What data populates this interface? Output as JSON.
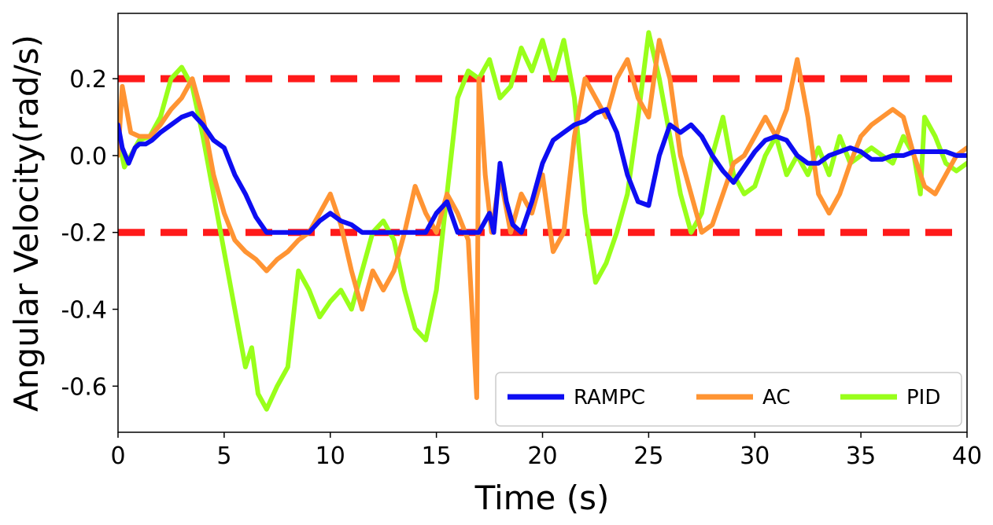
{
  "chart_data": {
    "type": "line",
    "title": "",
    "xlabel": "Time (s)",
    "ylabel": "Angular Velocity(rad/s)",
    "xlim": [
      0,
      40
    ],
    "ylim": [
      -0.72,
      0.37
    ],
    "xticks": [
      0,
      5,
      10,
      15,
      20,
      25,
      30,
      35,
      40
    ],
    "yticks": [
      0.2,
      0.0,
      -0.2,
      -0.4,
      -0.6
    ],
    "ytick_labels": [
      "0.2",
      "0.0",
      "-0.2",
      "-0.4",
      "-0.6"
    ],
    "grid": false,
    "legend_position": "lower-right",
    "reference_lines": [
      {
        "y": 0.2,
        "color": "#ff1a1a",
        "style": "dashed"
      },
      {
        "y": -0.2,
        "color": "#ff1a1a",
        "style": "dashed"
      }
    ],
    "series": [
      {
        "name": "PID",
        "color": "#99ff1a",
        "x": [
          0,
          0.3,
          0.6,
          1.0,
          1.5,
          2.0,
          2.5,
          3.0,
          3.5,
          4.0,
          4.5,
          5.0,
          5.5,
          6.0,
          6.3,
          6.6,
          7.0,
          7.5,
          8.0,
          8.5,
          9.0,
          9.5,
          10.0,
          10.5,
          11.0,
          11.5,
          12.0,
          12.5,
          13.0,
          13.5,
          14.0,
          14.5,
          15.0,
          15.5,
          16.0,
          16.5,
          17.0,
          17.5,
          18.0,
          18.5,
          19.0,
          19.5,
          20.0,
          20.5,
          21.0,
          21.5,
          22.0,
          22.5,
          23.0,
          23.5,
          24.0,
          24.5,
          25.0,
          25.5,
          26.0,
          26.5,
          27.0,
          27.5,
          28.0,
          28.5,
          29.0,
          29.5,
          30.0,
          30.5,
          31.0,
          31.5,
          32.0,
          32.5,
          33.0,
          33.5,
          34.0,
          34.5,
          35.0,
          35.5,
          36.0,
          36.5,
          37.0,
          37.5,
          37.8,
          38.0,
          38.5,
          39.0,
          39.5,
          40.0
        ],
        "y": [
          0.05,
          -0.03,
          0.0,
          0.04,
          0.05,
          0.1,
          0.2,
          0.23,
          0.18,
          0.05,
          -0.1,
          -0.25,
          -0.4,
          -0.55,
          -0.5,
          -0.62,
          -0.66,
          -0.6,
          -0.55,
          -0.3,
          -0.35,
          -0.42,
          -0.38,
          -0.35,
          -0.4,
          -0.3,
          -0.2,
          -0.17,
          -0.22,
          -0.35,
          -0.45,
          -0.48,
          -0.35,
          -0.1,
          0.15,
          0.22,
          0.2,
          0.25,
          0.15,
          0.18,
          0.28,
          0.22,
          0.3,
          0.2,
          0.3,
          0.15,
          -0.15,
          -0.33,
          -0.28,
          -0.2,
          -0.1,
          0.1,
          0.32,
          0.2,
          0.05,
          -0.1,
          -0.2,
          -0.15,
          0.0,
          0.1,
          -0.05,
          -0.1,
          -0.08,
          0.0,
          0.05,
          -0.05,
          0.0,
          -0.05,
          0.02,
          -0.05,
          0.05,
          -0.02,
          0.0,
          0.02,
          0.0,
          -0.02,
          0.05,
          0.0,
          -0.1,
          0.1,
          0.05,
          -0.02,
          -0.04,
          -0.02
        ]
      },
      {
        "name": "AC",
        "color": "#ff9433",
        "x": [
          0,
          0.2,
          0.6,
          1.0,
          1.5,
          2.0,
          2.5,
          3.0,
          3.5,
          4.0,
          4.5,
          5.0,
          5.5,
          6.0,
          6.5,
          7.0,
          7.5,
          8.0,
          8.5,
          9.0,
          9.5,
          10.0,
          10.5,
          11.0,
          11.5,
          12.0,
          12.5,
          13.0,
          13.5,
          14.0,
          14.5,
          15.0,
          15.5,
          16.0,
          16.5,
          16.9,
          17.0,
          17.3,
          17.6,
          18.0,
          18.5,
          19.0,
          19.5,
          20.0,
          20.5,
          21.0,
          21.5,
          22.0,
          22.5,
          23.0,
          23.5,
          24.0,
          24.5,
          25.0,
          25.5,
          26.0,
          26.5,
          27.0,
          27.5,
          28.0,
          28.5,
          29.0,
          29.5,
          30.0,
          30.5,
          31.0,
          31.5,
          32.0,
          32.5,
          33.0,
          33.5,
          34.0,
          34.5,
          35.0,
          35.5,
          36.0,
          36.5,
          37.0,
          37.5,
          38.0,
          38.5,
          39.0,
          39.5,
          40.0
        ],
        "y": [
          0.0,
          0.18,
          0.06,
          0.05,
          0.05,
          0.08,
          0.12,
          0.15,
          0.2,
          0.1,
          -0.05,
          -0.15,
          -0.22,
          -0.25,
          -0.27,
          -0.3,
          -0.27,
          -0.25,
          -0.22,
          -0.2,
          -0.15,
          -0.1,
          -0.18,
          -0.3,
          -0.4,
          -0.3,
          -0.35,
          -0.3,
          -0.2,
          -0.08,
          -0.15,
          -0.2,
          -0.1,
          -0.15,
          -0.22,
          -0.63,
          0.2,
          -0.05,
          -0.2,
          -0.05,
          -0.2,
          -0.1,
          -0.15,
          -0.05,
          -0.25,
          -0.2,
          0.05,
          0.2,
          0.15,
          0.1,
          0.2,
          0.25,
          0.15,
          0.1,
          0.3,
          0.2,
          0.0,
          -0.1,
          -0.2,
          -0.18,
          -0.1,
          -0.02,
          0.0,
          0.05,
          0.1,
          0.05,
          0.12,
          0.25,
          0.1,
          -0.1,
          -0.15,
          -0.1,
          -0.02,
          0.05,
          0.08,
          0.1,
          0.12,
          0.1,
          0.0,
          -0.08,
          -0.1,
          -0.05,
          0.0,
          0.02
        ]
      },
      {
        "name": "RAMPC",
        "color": "#0d0df2",
        "x": [
          0,
          0.2,
          0.5,
          0.8,
          1.0,
          1.3,
          1.6,
          2.0,
          2.5,
          3.0,
          3.5,
          4.0,
          4.5,
          5.0,
          5.5,
          6.0,
          6.5,
          7.0,
          7.5,
          8.0,
          8.5,
          9.0,
          9.5,
          10.0,
          10.5,
          11.0,
          11.5,
          12.0,
          12.5,
          13.0,
          13.5,
          14.0,
          14.5,
          15.0,
          15.5,
          16.0,
          16.5,
          17.0,
          17.5,
          17.7,
          18.0,
          18.3,
          18.6,
          19.0,
          19.5,
          20.0,
          20.5,
          21.0,
          21.5,
          22.0,
          22.5,
          23.0,
          23.5,
          24.0,
          24.5,
          25.0,
          25.5,
          26.0,
          26.5,
          27.0,
          27.5,
          28.0,
          28.5,
          29.0,
          29.5,
          30.0,
          30.5,
          31.0,
          31.5,
          32.0,
          32.5,
          33.0,
          33.5,
          34.0,
          34.5,
          35.0,
          35.5,
          36.0,
          36.5,
          37.0,
          37.5,
          38.0,
          38.5,
          39.0,
          39.5,
          40.0
        ],
        "y": [
          0.08,
          0.02,
          -0.02,
          0.02,
          0.03,
          0.03,
          0.04,
          0.06,
          0.08,
          0.1,
          0.11,
          0.08,
          0.04,
          0.02,
          -0.05,
          -0.1,
          -0.16,
          -0.2,
          -0.2,
          -0.2,
          -0.2,
          -0.2,
          -0.17,
          -0.15,
          -0.17,
          -0.18,
          -0.2,
          -0.2,
          -0.2,
          -0.2,
          -0.2,
          -0.2,
          -0.2,
          -0.15,
          -0.12,
          -0.2,
          -0.2,
          -0.2,
          -0.15,
          -0.2,
          -0.02,
          -0.12,
          -0.18,
          -0.2,
          -0.12,
          -0.02,
          0.04,
          0.06,
          0.08,
          0.09,
          0.11,
          0.12,
          0.06,
          -0.05,
          -0.12,
          -0.13,
          0.0,
          0.08,
          0.06,
          0.08,
          0.05,
          0.0,
          -0.04,
          -0.07,
          -0.03,
          0.01,
          0.04,
          0.05,
          0.04,
          0.0,
          -0.02,
          -0.02,
          0.0,
          0.01,
          0.02,
          0.01,
          -0.01,
          -0.01,
          0.0,
          0.0,
          0.01,
          0.01,
          0.01,
          0.01,
          0.0,
          0.0
        ]
      }
    ],
    "legend_order": [
      "RAMPC",
      "AC",
      "PID"
    ]
  }
}
